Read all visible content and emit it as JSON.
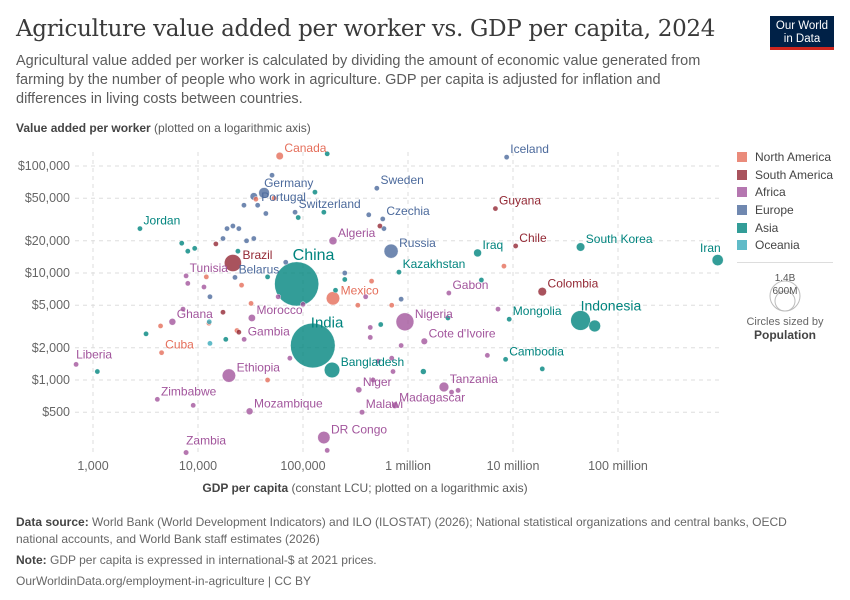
{
  "header": {
    "title": "Agriculture value added per worker vs. GDP per capita, 2024",
    "subtitle": "Agricultural value added per worker is calculated by dividing the amount of economic value generated from farming by the number of people who work in agriculture. GDP per capita is adjusted for inflation and differences in living costs between countries.",
    "logo_line1": "Our World",
    "logo_line2": "in Data"
  },
  "chart_data": {
    "type": "scatter",
    "title": "Agriculture value added per worker vs. GDP per capita, 2024",
    "ylabel_bold": "Value added per worker",
    "ylabel_rest": " (plotted on a logarithmic axis)",
    "xlabel_bold": "GDP per capita",
    "xlabel_rest": " (constant LCU; plotted on a logarithmic axis)",
    "x_scale": "log",
    "y_scale": "log",
    "xlim": [
      700,
      1000000000
    ],
    "ylim": [
      180,
      140000
    ],
    "x_ticks": [
      {
        "v": 1000,
        "label": "1,000"
      },
      {
        "v": 10000,
        "label": "10,000"
      },
      {
        "v": 100000,
        "label": "100,000"
      },
      {
        "v": 1000000,
        "label": "1 million"
      },
      {
        "v": 10000000,
        "label": "10 million"
      },
      {
        "v": 100000000,
        "label": "100 million"
      }
    ],
    "y_ticks": [
      {
        "v": 100000,
        "label": "$100,000"
      },
      {
        "v": 50000,
        "label": "$50,000"
      },
      {
        "v": 20000,
        "label": "$20,000"
      },
      {
        "v": 10000,
        "label": "$10,000"
      },
      {
        "v": 5000,
        "label": "$5,000"
      },
      {
        "v": 2000,
        "label": "$2,000"
      },
      {
        "v": 1000,
        "label": "$1,000"
      },
      {
        "v": 500,
        "label": "$500"
      }
    ],
    "grid": true,
    "legend_position": "right",
    "colors": {
      "North America": "#e56e5a",
      "South America": "#932834",
      "Africa": "#a2559c",
      "Europe": "#4c6a9c",
      "Asia": "#00847e",
      "Oceania": "#38aaba"
    },
    "legend": [
      "North America",
      "South America",
      "Africa",
      "Europe",
      "Asia",
      "Oceania"
    ],
    "size_legend": {
      "title": "Circles sized by",
      "variable": "Population",
      "large": "1.4B",
      "small": "600M"
    },
    "points": [
      {
        "name": "Canada",
        "x": 60000,
        "y": 124000,
        "c": "North America",
        "pop": 40
      },
      {
        "name": "Germany",
        "x": 42600,
        "y": 56000,
        "c": "Europe",
        "pop": 84
      },
      {
        "name": "Sweden",
        "x": 505000,
        "y": 62000,
        "c": "Europe",
        "pop": 10
      },
      {
        "name": "Switzerland",
        "x": 84000,
        "y": 37000,
        "c": "Europe",
        "pop": 9
      },
      {
        "name": "Czechia",
        "x": 575000,
        "y": 32000,
        "c": "Europe",
        "pop": 11
      },
      {
        "name": "Jordan",
        "x": 2800,
        "y": 26000,
        "c": "Asia",
        "pop": 11
      },
      {
        "name": "Portugal",
        "x": 37000,
        "y": 43000,
        "c": "Europe",
        "pop": 10
      },
      {
        "name": "Algeria",
        "x": 193000,
        "y": 20000,
        "c": "Africa",
        "pop": 46
      },
      {
        "name": "Russia",
        "x": 690000,
        "y": 16000,
        "c": "Europe",
        "pop": 144
      },
      {
        "name": "Brazil",
        "x": 21500,
        "y": 12400,
        "c": "South America",
        "pop": 211
      },
      {
        "name": "China",
        "x": 87000,
        "y": 7900,
        "c": "Asia",
        "pop": 1410
      },
      {
        "name": "Tunisia",
        "x": 7700,
        "y": 9400,
        "c": "Africa",
        "pop": 12
      },
      {
        "name": "Belarus",
        "x": 22500,
        "y": 9100,
        "c": "Europe",
        "pop": 9
      },
      {
        "name": "Mexico",
        "x": 193000,
        "y": 5800,
        "c": "North America",
        "pop": 130
      },
      {
        "name": "Kazakhstan",
        "x": 820000,
        "y": 10200,
        "c": "Asia",
        "pop": 20
      },
      {
        "name": "Iceland",
        "x": 8700000,
        "y": 121000,
        "c": "Europe",
        "pop": 0.4
      },
      {
        "name": "Guyana",
        "x": 6800000,
        "y": 40000,
        "c": "South America",
        "pop": 0.8
      },
      {
        "name": "Chile",
        "x": 10600000,
        "y": 17900,
        "c": "South America",
        "pop": 20
      },
      {
        "name": "Iraq",
        "x": 4600000,
        "y": 15400,
        "c": "Asia",
        "pop": 45
      },
      {
        "name": "South Korea",
        "x": 44000000,
        "y": 17500,
        "c": "Asia",
        "pop": 52
      },
      {
        "name": "Iran",
        "x": 890000000,
        "y": 13200,
        "c": "Asia",
        "pop": 90
      },
      {
        "name": "Gabon",
        "x": 2450000,
        "y": 6500,
        "c": "Africa",
        "pop": 2.5
      },
      {
        "name": "Colombia",
        "x": 19000000,
        "y": 6700,
        "c": "South America",
        "pop": 53
      },
      {
        "name": "Indonesia",
        "x": 44000000,
        "y": 3600,
        "c": "Asia",
        "pop": 280
      },
      {
        "name": "Mongolia",
        "x": 9200000,
        "y": 3700,
        "c": "Asia",
        "pop": 3.5
      },
      {
        "name": "Nigeria",
        "x": 935000,
        "y": 3500,
        "c": "Africa",
        "pop": 230
      },
      {
        "name": "Cote d'Ivoire",
        "x": 1430000,
        "y": 2300,
        "c": "Africa",
        "pop": 31
      },
      {
        "name": "India",
        "x": 124000,
        "y": 2100,
        "c": "Asia",
        "pop": 1440
      },
      {
        "name": "Bangladesh",
        "x": 189000,
        "y": 1240,
        "c": "Asia",
        "pop": 173
      },
      {
        "name": "Cambodia",
        "x": 8500000,
        "y": 1560,
        "c": "Asia",
        "pop": 17
      },
      {
        "name": "Ghana",
        "x": 5700,
        "y": 3500,
        "c": "Africa",
        "pop": 34
      },
      {
        "name": "Morocco",
        "x": 32600,
        "y": 3800,
        "c": "Africa",
        "pop": 38
      },
      {
        "name": "Gambia",
        "x": 27500,
        "y": 2400,
        "c": "Africa",
        "pop": 2.8
      },
      {
        "name": "Cuba",
        "x": 4500,
        "y": 1800,
        "c": "North America",
        "pop": 11
      },
      {
        "name": "Liberia",
        "x": 690,
        "y": 1400,
        "c": "Africa",
        "pop": 5.5
      },
      {
        "name": "Ethiopia",
        "x": 19700,
        "y": 1100,
        "c": "Africa",
        "pop": 130
      },
      {
        "name": "Zimbabwe",
        "x": 4100,
        "y": 660,
        "c": "Africa",
        "pop": 16
      },
      {
        "name": "Mozambique",
        "x": 31000,
        "y": 510,
        "c": "Africa",
        "pop": 34
      },
      {
        "name": "Niger",
        "x": 340000,
        "y": 810,
        "c": "Africa",
        "pop": 27
      },
      {
        "name": "Malawi",
        "x": 365000,
        "y": 500,
        "c": "Africa",
        "pop": 21
      },
      {
        "name": "Tanzania",
        "x": 2200000,
        "y": 860,
        "c": "Africa",
        "pop": 68
      },
      {
        "name": "DR Congo",
        "x": 158000,
        "y": 290,
        "c": "Africa",
        "pop": 110
      },
      {
        "name": "Madagascar",
        "x": 750000,
        "y": 580,
        "c": "Africa",
        "pop": 31
      },
      {
        "name": "Zambia",
        "x": 7700,
        "y": 210,
        "c": "Africa",
        "pop": 21
      },
      {
        "x": 50700,
        "y": 82000,
        "c": "Europe",
        "pop": 6
      },
      {
        "x": 27400,
        "y": 43000,
        "c": "Europe",
        "pop": 15
      },
      {
        "x": 44300,
        "y": 36000,
        "c": "Europe",
        "pop": 5
      },
      {
        "x": 18900,
        "y": 26000,
        "c": "Europe",
        "pop": 5
      },
      {
        "x": 21500,
        "y": 27500,
        "c": "Europe",
        "pop": 4
      },
      {
        "x": 24500,
        "y": 26000,
        "c": "Europe",
        "pop": 3
      },
      {
        "x": 17300,
        "y": 21000,
        "c": "Europe",
        "pop": 4
      },
      {
        "x": 29000,
        "y": 20000,
        "c": "Europe",
        "pop": 5
      },
      {
        "x": 34000,
        "y": 21000,
        "c": "Europe",
        "pop": 4
      },
      {
        "x": 68500,
        "y": 12600,
        "c": "Europe",
        "pop": 10
      },
      {
        "x": 423000,
        "y": 35000,
        "c": "Europe",
        "pop": 5
      },
      {
        "x": 590000,
        "y": 26000,
        "c": "Europe",
        "pop": 5
      },
      {
        "x": 250000,
        "y": 10000,
        "c": "Europe",
        "pop": 4
      },
      {
        "x": 860000,
        "y": 5700,
        "c": "Europe",
        "pop": 3
      },
      {
        "x": 13000,
        "y": 6000,
        "c": "Europe",
        "pop": 3
      },
      {
        "x": 34000,
        "y": 52000,
        "c": "Europe",
        "pop": 40
      },
      {
        "x": 170000,
        "y": 130000,
        "c": "Asia",
        "pop": 3
      },
      {
        "x": 130000,
        "y": 57000,
        "c": "Asia",
        "pop": 6
      },
      {
        "x": 90000,
        "y": 33000,
        "c": "Asia",
        "pop": 4
      },
      {
        "x": 158000,
        "y": 37000,
        "c": "Asia",
        "pop": 3
      },
      {
        "x": 7000,
        "y": 19000,
        "c": "Asia",
        "pop": 4
      },
      {
        "x": 8000,
        "y": 16000,
        "c": "Asia",
        "pop": 3
      },
      {
        "x": 9300,
        "y": 17000,
        "c": "Asia",
        "pop": 3
      },
      {
        "x": 46000,
        "y": 9200,
        "c": "Asia",
        "pop": 10
      },
      {
        "x": 18400,
        "y": 2400,
        "c": "Asia",
        "pop": 4
      },
      {
        "x": 3200,
        "y": 2700,
        "c": "Asia",
        "pop": 3
      },
      {
        "x": 1100,
        "y": 1200,
        "c": "Asia",
        "pop": 4
      },
      {
        "x": 250000,
        "y": 8700,
        "c": "Asia",
        "pop": 5
      },
      {
        "x": 550000,
        "y": 3300,
        "c": "Asia",
        "pop": 6
      },
      {
        "x": 1400000,
        "y": 1200,
        "c": "Asia",
        "pop": 25
      },
      {
        "x": 5000000,
        "y": 8600,
        "c": "Asia",
        "pop": 10
      },
      {
        "x": 2400000,
        "y": 3800,
        "c": "Asia",
        "pop": 3
      },
      {
        "x": 19000000,
        "y": 1270,
        "c": "Asia",
        "pop": 3
      },
      {
        "x": 60000000,
        "y": 3200,
        "c": "Asia",
        "pop": 100
      },
      {
        "x": 204000,
        "y": 6900,
        "c": "Asia",
        "pop": 3
      },
      {
        "x": 24000,
        "y": 16000,
        "c": "Asia",
        "pop": 3
      },
      {
        "x": 11400,
        "y": 7400,
        "c": "Africa",
        "pop": 5
      },
      {
        "x": 58000,
        "y": 6000,
        "c": "Africa",
        "pop": 5
      },
      {
        "x": 395000,
        "y": 6000,
        "c": "Africa",
        "pop": 5
      },
      {
        "x": 437000,
        "y": 3100,
        "c": "Africa",
        "pop": 5
      },
      {
        "x": 437000,
        "y": 2500,
        "c": "Africa",
        "pop": 20
      },
      {
        "x": 860000,
        "y": 2100,
        "c": "Africa",
        "pop": 5
      },
      {
        "x": 520000,
        "y": 1500,
        "c": "Africa",
        "pop": 6
      },
      {
        "x": 720000,
        "y": 1200,
        "c": "Africa",
        "pop": 6
      },
      {
        "x": 465000,
        "y": 1000,
        "c": "Africa",
        "pop": 6
      },
      {
        "x": 700000,
        "y": 1600,
        "c": "Africa",
        "pop": 5
      },
      {
        "x": 5700000,
        "y": 1700,
        "c": "Africa",
        "pop": 4
      },
      {
        "x": 2600000,
        "y": 770,
        "c": "Africa",
        "pop": 5
      },
      {
        "x": 3000000,
        "y": 800,
        "c": "Africa",
        "pop": 20
      },
      {
        "x": 7200000,
        "y": 4600,
        "c": "Africa",
        "pop": 4
      },
      {
        "x": 7200,
        "y": 4600,
        "c": "Africa",
        "pop": 4
      },
      {
        "x": 9000,
        "y": 580,
        "c": "Africa",
        "pop": 4
      },
      {
        "x": 75000,
        "y": 1600,
        "c": "Africa",
        "pop": 5
      },
      {
        "x": 170000,
        "y": 220,
        "c": "Africa",
        "pop": 5
      },
      {
        "x": 8000,
        "y": 8000,
        "c": "Africa",
        "pop": 5
      },
      {
        "x": 100000,
        "y": 5100,
        "c": "Africa",
        "pop": 4
      },
      {
        "x": 35600,
        "y": 49000,
        "c": "North America",
        "pop": 4
      },
      {
        "x": 53000,
        "y": 50000,
        "c": "North America",
        "pop": 4
      },
      {
        "x": 12000,
        "y": 9200,
        "c": "North America",
        "pop": 4
      },
      {
        "x": 26000,
        "y": 7700,
        "c": "North America",
        "pop": 4
      },
      {
        "x": 23500,
        "y": 2900,
        "c": "North America",
        "pop": 4
      },
      {
        "x": 12700,
        "y": 3400,
        "c": "North America",
        "pop": 4
      },
      {
        "x": 4400,
        "y": 3200,
        "c": "North America",
        "pop": 4
      },
      {
        "x": 46000,
        "y": 1000,
        "c": "North America",
        "pop": 4
      },
      {
        "x": 450000,
        "y": 8400,
        "c": "North America",
        "pop": 4
      },
      {
        "x": 333000,
        "y": 5000,
        "c": "North America",
        "pop": 4
      },
      {
        "x": 700000,
        "y": 5000,
        "c": "North America",
        "pop": 4
      },
      {
        "x": 8200000,
        "y": 11600,
        "c": "North America",
        "pop": 4
      },
      {
        "x": 32000,
        "y": 5200,
        "c": "North America",
        "pop": 4
      },
      {
        "x": 14800,
        "y": 18700,
        "c": "South America",
        "pop": 7
      },
      {
        "x": 540000,
        "y": 27500,
        "c": "South America",
        "pop": 3
      },
      {
        "x": 17300,
        "y": 4300,
        "c": "South America",
        "pop": 7
      },
      {
        "x": 24500,
        "y": 2800,
        "c": "South America",
        "pop": 3
      },
      {
        "x": 13000,
        "y": 2200,
        "c": "Oceania",
        "pop": 4
      },
      {
        "x": 12800,
        "y": 3500,
        "c": "Oceania",
        "pop": 3
      }
    ]
  },
  "footer": {
    "source_label": "Data source:",
    "source_text": " World Bank (World Development Indicators) and ILO (ILOSTAT) (2026); National statistical organizations and central banks, OECD national accounts, and World Bank staff estimates (2026)",
    "note_label": "Note:",
    "note_text": " GDP per capita is expressed in international-$ at 2021 prices.",
    "url": "OurWorldinData.org/employment-in-agriculture | CC BY"
  }
}
